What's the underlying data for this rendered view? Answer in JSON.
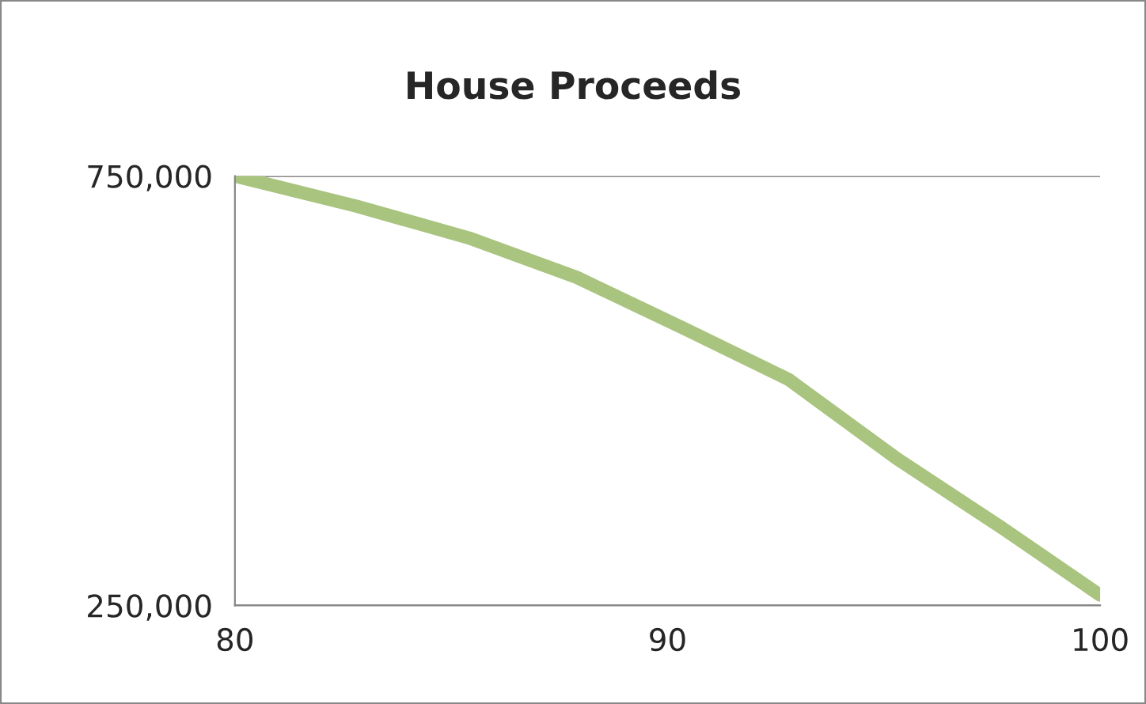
{
  "chart_data": {
    "type": "line",
    "title": "House Proceeds",
    "x": [
      80,
      82.8,
      85.4,
      87.9,
      90.4,
      92.8,
      95.3,
      97.8,
      100
    ],
    "series": [
      {
        "color": "#a9c47f",
        "values": [
          750000,
          715000,
          678000,
          632000,
          572000,
          513000,
          421000,
          338000,
          262000
        ]
      }
    ],
    "xlim": [
      80,
      100
    ],
    "xticks": [
      80,
      90,
      100
    ],
    "ylim": [
      250000,
      750000
    ],
    "yticks": [
      {
        "value": 250000,
        "label": "250,000"
      },
      {
        "value": 750000,
        "label": "750,000"
      }
    ],
    "grid": "y",
    "marker": "none",
    "line_style": "solid",
    "legend": false
  }
}
